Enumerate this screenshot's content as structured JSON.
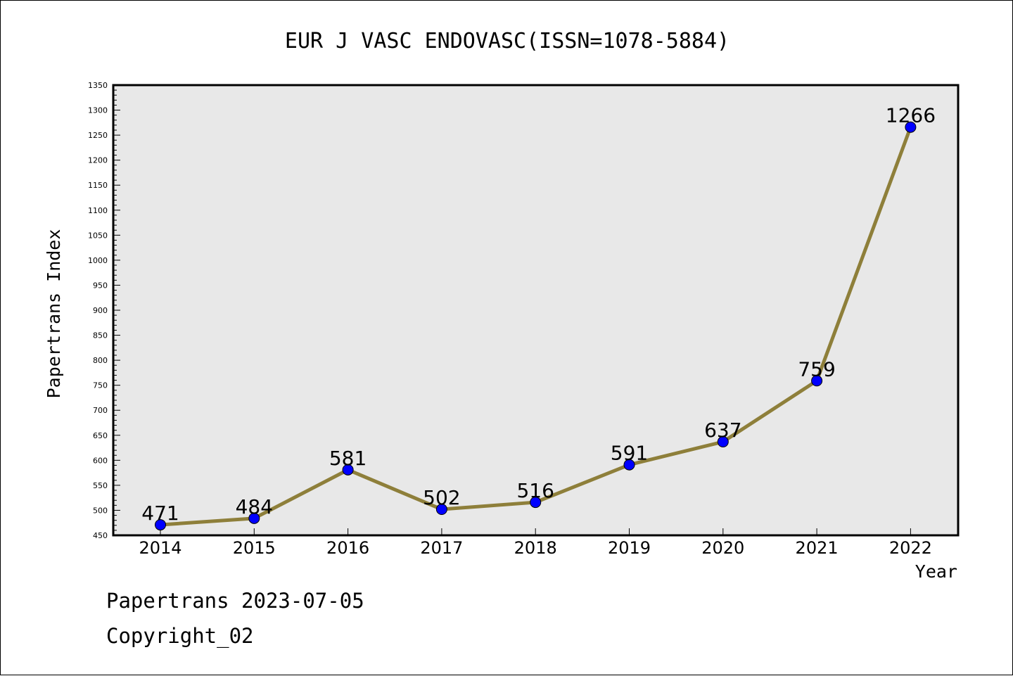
{
  "chart_data": {
    "type": "line",
    "title": "EUR J VASC ENDOVASC(ISSN=1078-5884)",
    "xlabel": "Year",
    "ylabel": "Papertrans Index",
    "x": [
      "2014",
      "2015",
      "2016",
      "2017",
      "2018",
      "2019",
      "2020",
      "2021",
      "2022"
    ],
    "series": [
      {
        "values": [
          471,
          484,
          581,
          502,
          516,
          591,
          637,
          759,
          1266
        ]
      }
    ],
    "data_labels": [
      "471",
      "484",
      "581",
      "502",
      "516",
      "591",
      "637",
      "759",
      "1266"
    ],
    "ylim": [
      450,
      1350
    ],
    "yticks": [
      450,
      500,
      550,
      600,
      650,
      700,
      750,
      800,
      850,
      900,
      950,
      1000,
      1050,
      1100,
      1150,
      1200,
      1250,
      1300,
      1350
    ],
    "grid": false,
    "line_color": "#8e7f3a",
    "marker_color": "#0000ff",
    "plot_background": "#e8e8e8"
  },
  "footer": {
    "line1": "Papertrans 2023-07-05",
    "line2": "Copyright_02"
  }
}
